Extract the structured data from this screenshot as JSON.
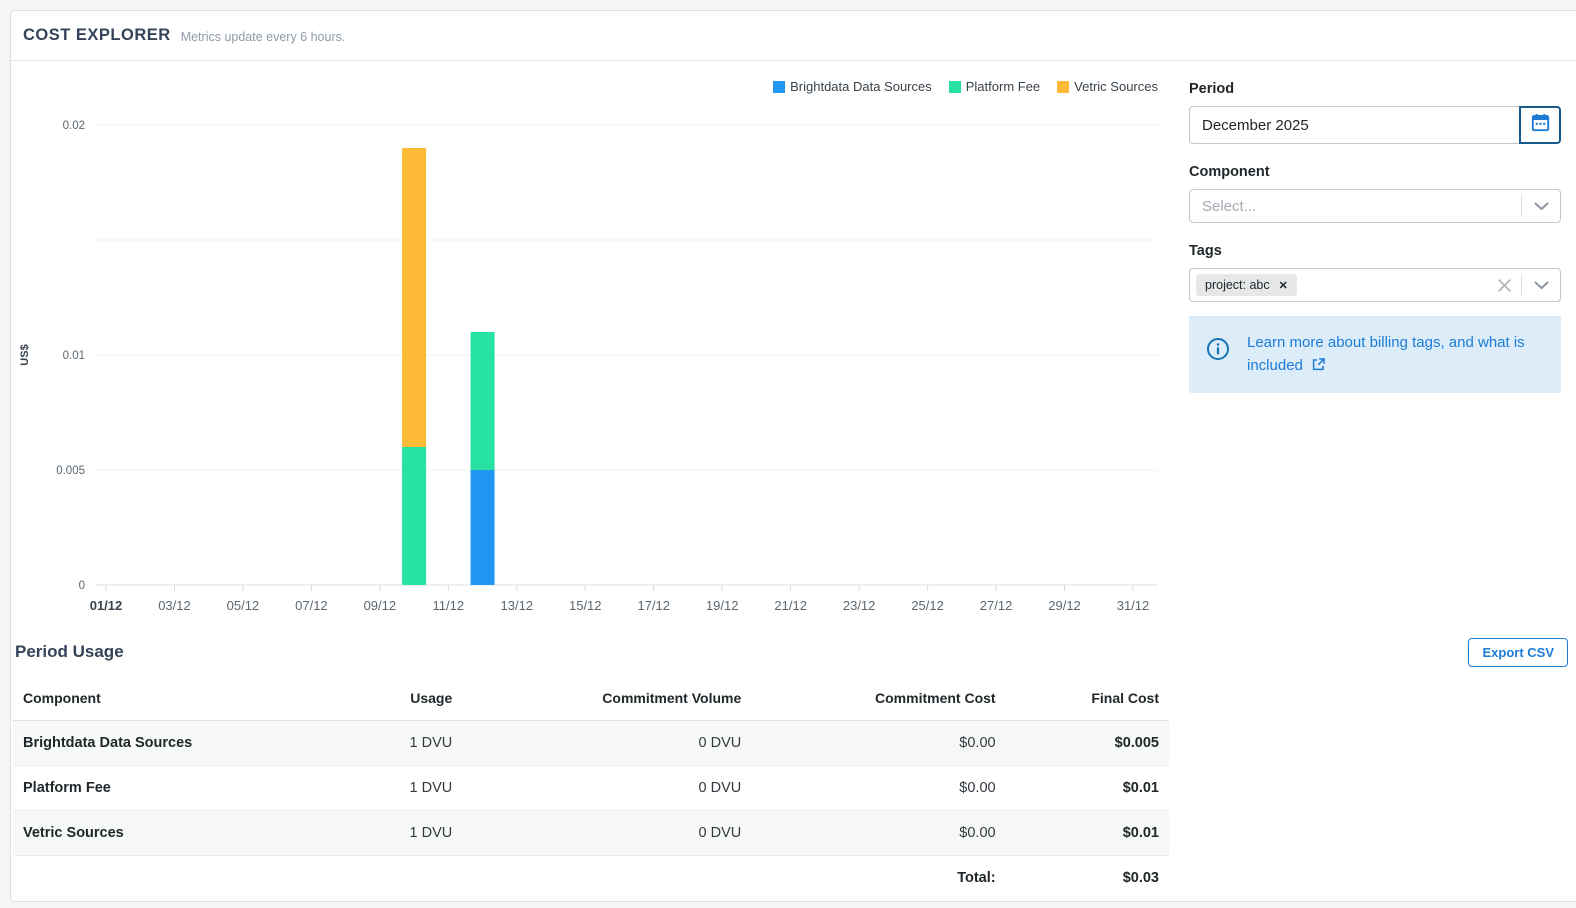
{
  "colors": {
    "accent_blue": "#1c7cd6",
    "calendar_border": "#175a8c",
    "info_bg": "#dcedf9",
    "heading": "#344358",
    "bar_blue": "#2196f3",
    "bar_green": "#27e2a1",
    "bar_orange": "#fcba36"
  },
  "header": {
    "title": "COST EXPLORER",
    "subtitle": "Metrics update every 6 hours."
  },
  "chart_data": {
    "type": "bar",
    "stacked": true,
    "title": "",
    "xlabel": "",
    "ylabel": "US$",
    "ylim": [
      0,
      0.02
    ],
    "grid": true,
    "legend_position": "top-right",
    "yticks": [
      {
        "value": 0,
        "label": "0"
      },
      {
        "value": 0.005,
        "label": "0.005"
      },
      {
        "value": 0.01,
        "label": "0.01"
      },
      {
        "value": 0.015,
        "label": ""
      },
      {
        "value": 0.02,
        "label": "0.02"
      }
    ],
    "x_tick_labels": [
      "01/12",
      "03/12",
      "05/12",
      "07/12",
      "09/12",
      "11/12",
      "13/12",
      "15/12",
      "17/12",
      "19/12",
      "21/12",
      "23/12",
      "25/12",
      "27/12",
      "29/12",
      "31/12"
    ],
    "x_days_in_month": 31,
    "legend": [
      {
        "name": "Brightdata Data Sources",
        "color": "#2196f3"
      },
      {
        "name": "Platform Fee",
        "color": "#27e2a1"
      },
      {
        "name": "Vetric Sources",
        "color": "#fcba36"
      }
    ],
    "bars": [
      {
        "day": 10,
        "date": "10/12",
        "segments": [
          {
            "series": "Platform Fee",
            "value": 0.006
          },
          {
            "series": "Vetric Sources",
            "value": 0.013
          }
        ]
      },
      {
        "day": 12,
        "date": "12/12",
        "segments": [
          {
            "series": "Brightdata Data Sources",
            "value": 0.005
          },
          {
            "series": "Platform Fee",
            "value": 0.006
          }
        ]
      }
    ]
  },
  "filters": {
    "period": {
      "label": "Period",
      "value": "December 2025",
      "icon": "calendar-icon"
    },
    "component": {
      "label": "Component",
      "placeholder": "Select...",
      "icon": "chevron-down-icon"
    },
    "tags": {
      "label": "Tags",
      "selected": [
        {
          "text": "project: abc",
          "remove_icon": "remove-tag-icon"
        }
      ],
      "clear_icon": "clear-icon",
      "icon": "chevron-down-icon"
    },
    "info": {
      "icon": "info-icon",
      "text": "Learn more about billing tags, and what is included",
      "link_icon": "external-link-icon"
    }
  },
  "period_usage": {
    "title": "Period Usage",
    "export_label": "Export CSV",
    "columns": [
      "Component",
      "Usage",
      "Commitment Volume",
      "Commitment Cost",
      "Final Cost"
    ],
    "rows": [
      {
        "component": "Brightdata Data Sources",
        "usage": "1 DVU",
        "commitment_volume": "0 DVU",
        "commitment_cost": "$0.00",
        "final_cost": "$0.005"
      },
      {
        "component": "Platform Fee",
        "usage": "1 DVU",
        "commitment_volume": "0 DVU",
        "commitment_cost": "$0.00",
        "final_cost": "$0.01"
      },
      {
        "component": "Vetric Sources",
        "usage": "1 DVU",
        "commitment_volume": "0 DVU",
        "commitment_cost": "$0.00",
        "final_cost": "$0.01"
      }
    ],
    "total": {
      "label": "Total:",
      "value": "$0.03"
    }
  }
}
